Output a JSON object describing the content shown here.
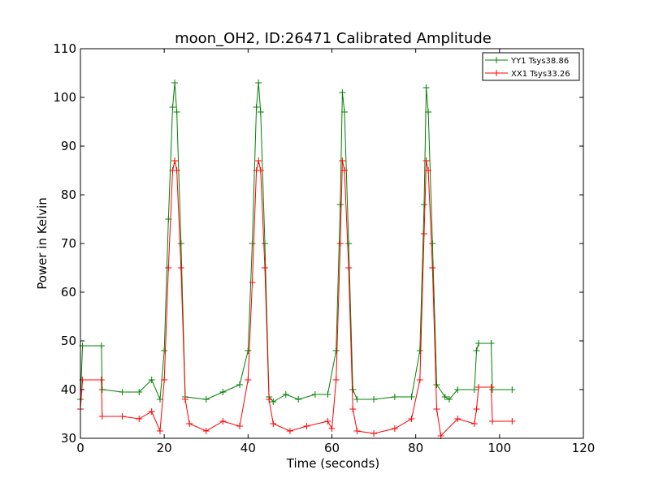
{
  "chart_data": {
    "type": "line",
    "title": "moon_OH2, ID:26471 Calibrated Amplitude",
    "xlabel": "Time (seconds)",
    "ylabel": "Power in Kelvin",
    "xlim": [
      0,
      120
    ],
    "ylim": [
      30,
      110
    ],
    "xticks": [
      0,
      20,
      40,
      60,
      80,
      100,
      120
    ],
    "yticks": [
      30,
      40,
      50,
      60,
      70,
      80,
      90,
      100,
      110
    ],
    "xtick_labels": [
      "0",
      "20",
      "40",
      "60",
      "80",
      "100",
      "120"
    ],
    "ytick_labels": [
      "30",
      "40",
      "50",
      "60",
      "70",
      "80",
      "90",
      "100",
      "110"
    ],
    "grid": false,
    "legend_position": "top-right",
    "marker": "+",
    "series": [
      {
        "name": "YY1 Tsys38.86",
        "color": "#008000",
        "x": [
          0,
          0.5,
          5,
          5.2,
          10,
          14,
          17,
          19,
          20,
          21,
          22,
          22.5,
          23,
          24,
          25,
          30,
          34,
          38,
          40,
          41,
          42,
          42.5,
          43,
          44,
          45,
          46,
          49,
          52,
          56,
          59,
          61,
          62,
          62.5,
          63,
          64,
          65,
          66,
          70,
          75,
          79,
          81,
          82,
          82.5,
          83,
          84,
          85,
          87,
          88,
          90,
          94,
          94.5,
          95,
          98,
          98.3,
          103
        ],
        "values": [
          38,
          49,
          49,
          40,
          39.5,
          39.5,
          42,
          38,
          48,
          75,
          98,
          103,
          97,
          70,
          38.5,
          38,
          39.5,
          41,
          48,
          70,
          98,
          103,
          97,
          70,
          38.5,
          37.5,
          39,
          38,
          39,
          39,
          48,
          78,
          101,
          97,
          70,
          40,
          38,
          38,
          38.5,
          38.5,
          48,
          78,
          102,
          97,
          70,
          41,
          38.5,
          38,
          40,
          40,
          48,
          49.5,
          49.5,
          40,
          40
        ]
      },
      {
        "name": "XX1 Tsys33.26",
        "color": "#ff0000",
        "x": [
          0,
          0.5,
          5,
          5.2,
          10,
          14,
          17,
          19,
          20,
          21,
          22,
          22.5,
          23,
          24,
          25,
          26,
          30,
          34,
          38,
          40,
          41,
          42,
          42.5,
          43,
          44,
          45,
          46,
          50,
          54,
          59,
          60,
          61,
          62,
          62.5,
          63,
          64,
          65,
          66,
          70,
          75,
          79,
          81,
          82,
          82.5,
          83,
          84,
          85,
          86,
          90,
          94,
          94.5,
          95,
          98,
          98.3,
          103
        ],
        "values": [
          36,
          42,
          42,
          34.5,
          34.5,
          34,
          35.5,
          31.5,
          42,
          65,
          85,
          87,
          85,
          65,
          38,
          33,
          31.5,
          33.5,
          32.5,
          42,
          62,
          85,
          87,
          85,
          65,
          38,
          33,
          31.5,
          32.5,
          33.5,
          32,
          42,
          70,
          87,
          85,
          65,
          36,
          31.5,
          31,
          32,
          34,
          42,
          72,
          87,
          85,
          65,
          36,
          30.5,
          34,
          33,
          36,
          40.5,
          40.5,
          33.5,
          33.5
        ]
      }
    ]
  }
}
